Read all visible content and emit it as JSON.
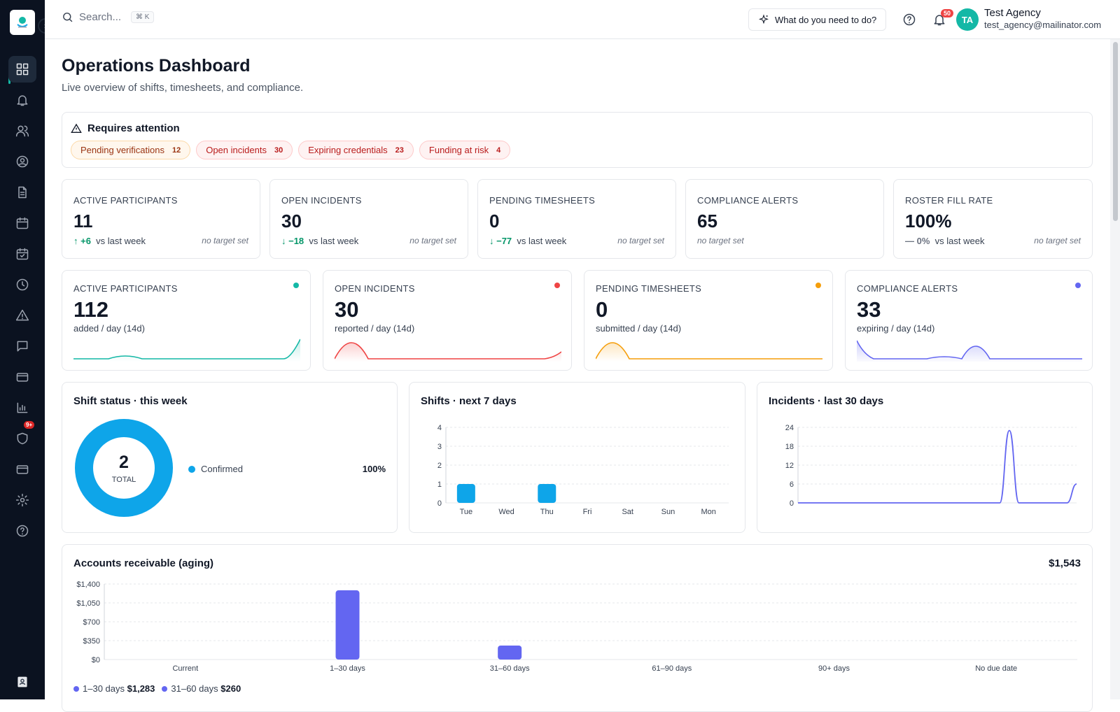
{
  "topbar": {
    "search_placeholder": "Search...",
    "search_shortcut": "⌘ K",
    "ask_button": "What do you need to do?",
    "notifications_count": "50",
    "user": {
      "initials": "TA",
      "name": "Test Agency",
      "email": "test_agency@mailinator.com"
    }
  },
  "sidebar": {
    "items": [
      {
        "icon": "dashboard-icon",
        "active": true
      },
      {
        "icon": "bell-icon"
      },
      {
        "icon": "users-icon"
      },
      {
        "icon": "user-circle-icon"
      },
      {
        "icon": "document-icon"
      },
      {
        "icon": "calendar-icon"
      },
      {
        "icon": "calendar-check-icon"
      },
      {
        "icon": "clock-icon"
      },
      {
        "icon": "warning-icon"
      },
      {
        "icon": "message-icon"
      },
      {
        "icon": "card-icon"
      },
      {
        "icon": "bar-chart-icon"
      },
      {
        "icon": "shield-icon",
        "badge": "9+"
      },
      {
        "icon": "wallet-icon"
      },
      {
        "icon": "gear-icon"
      },
      {
        "icon": "help-icon"
      }
    ]
  },
  "page": {
    "title": "Operations Dashboard",
    "subtitle": "Live overview of shifts, timesheets, and compliance."
  },
  "attention": {
    "title": "Requires attention",
    "pills": [
      {
        "label": "Pending verifications",
        "count": "12",
        "tone": "warn"
      },
      {
        "label": "Open incidents",
        "count": "30",
        "tone": "bad"
      },
      {
        "label": "Expiring credentials",
        "count": "23",
        "tone": "bad"
      },
      {
        "label": "Funding at risk",
        "count": "4",
        "tone": "bad"
      }
    ]
  },
  "kpis": [
    {
      "label": "ACTIVE PARTICIPANTS",
      "value": "11",
      "delta": "↑ +6",
      "delta_text": "vs last week",
      "target": "no target set"
    },
    {
      "label": "OPEN INCIDENTS",
      "value": "30",
      "delta": "↓ −18",
      "delta_text": "vs last week",
      "target": "no target set"
    },
    {
      "label": "PENDING TIMESHEETS",
      "value": "0",
      "delta": "↓ −77",
      "delta_text": "vs last week",
      "target": "no target set"
    },
    {
      "label": "COMPLIANCE ALERTS",
      "value": "65",
      "delta": "",
      "delta_text": "",
      "target": "no target set"
    },
    {
      "label": "ROSTER FILL RATE",
      "value": "100%",
      "delta": "— 0%",
      "delta_text": "vs last week",
      "target": "no target set"
    }
  ],
  "sparks": [
    {
      "label": "ACTIVE PARTICIPANTS",
      "value": "112",
      "sub": "added / day (14d)",
      "color": "#14b8a6"
    },
    {
      "label": "OPEN INCIDENTS",
      "value": "30",
      "sub": "reported / day (14d)",
      "color": "#ef4444"
    },
    {
      "label": "PENDING TIMESHEETS",
      "value": "0",
      "sub": "submitted / day (14d)",
      "color": "#f59e0b"
    },
    {
      "label": "COMPLIANCE ALERTS",
      "value": "33",
      "sub": "expiring / day (14d)",
      "color": "#6366f1"
    }
  ],
  "chart_data": [
    {
      "type": "pie",
      "title": "Shift status · this week",
      "center_value": "2",
      "center_label": "TOTAL",
      "slices": [
        {
          "name": "Confirmed",
          "value": 2,
          "percent": "100%",
          "color": "#0ea5e9"
        }
      ]
    },
    {
      "type": "bar",
      "title": "Shifts · next 7 days",
      "categories": [
        "Tue",
        "Wed",
        "Thu",
        "Fri",
        "Sat",
        "Sun",
        "Mon"
      ],
      "values": [
        1,
        0,
        1,
        0,
        0,
        0,
        0
      ],
      "yticks": [
        "0",
        "1",
        "2",
        "3",
        "4"
      ],
      "ylim": [
        0,
        4
      ],
      "color": "#0ea5e9"
    },
    {
      "type": "line",
      "title": "Incidents · last 30 days",
      "x": [
        1,
        2,
        3,
        4,
        5,
        6,
        7,
        8,
        9,
        10,
        11,
        12,
        13,
        14,
        15,
        16,
        17,
        18,
        19,
        20,
        21,
        22,
        23,
        24,
        25,
        26,
        27,
        28,
        29,
        30
      ],
      "values": [
        0,
        0,
        0,
        0,
        0,
        0,
        0,
        0,
        0,
        0,
        0,
        0,
        0,
        0,
        0,
        0,
        0,
        0,
        0,
        0,
        0,
        0,
        23,
        0,
        0,
        0,
        0,
        0,
        0,
        6
      ],
      "yticks": [
        "0",
        "6",
        "12",
        "18",
        "24"
      ],
      "ylim": [
        0,
        24
      ],
      "color": "#6366f1"
    },
    {
      "type": "bar",
      "title": "Accounts receivable (aging)",
      "total": "$1,543",
      "categories": [
        "Current",
        "1–30 days",
        "31–60 days",
        "61–90 days",
        "90+ days",
        "No due date"
      ],
      "values": [
        0,
        1283,
        260,
        0,
        0,
        0
      ],
      "yticks": [
        "$0",
        "$350",
        "$700",
        "$1,050",
        "$1,400"
      ],
      "ylim": [
        0,
        1400
      ],
      "color": "#6366f1",
      "legend": [
        {
          "name": "1–30 days",
          "amount": "$1,283"
        },
        {
          "name": "31–60 days",
          "amount": "$260"
        }
      ]
    }
  ]
}
